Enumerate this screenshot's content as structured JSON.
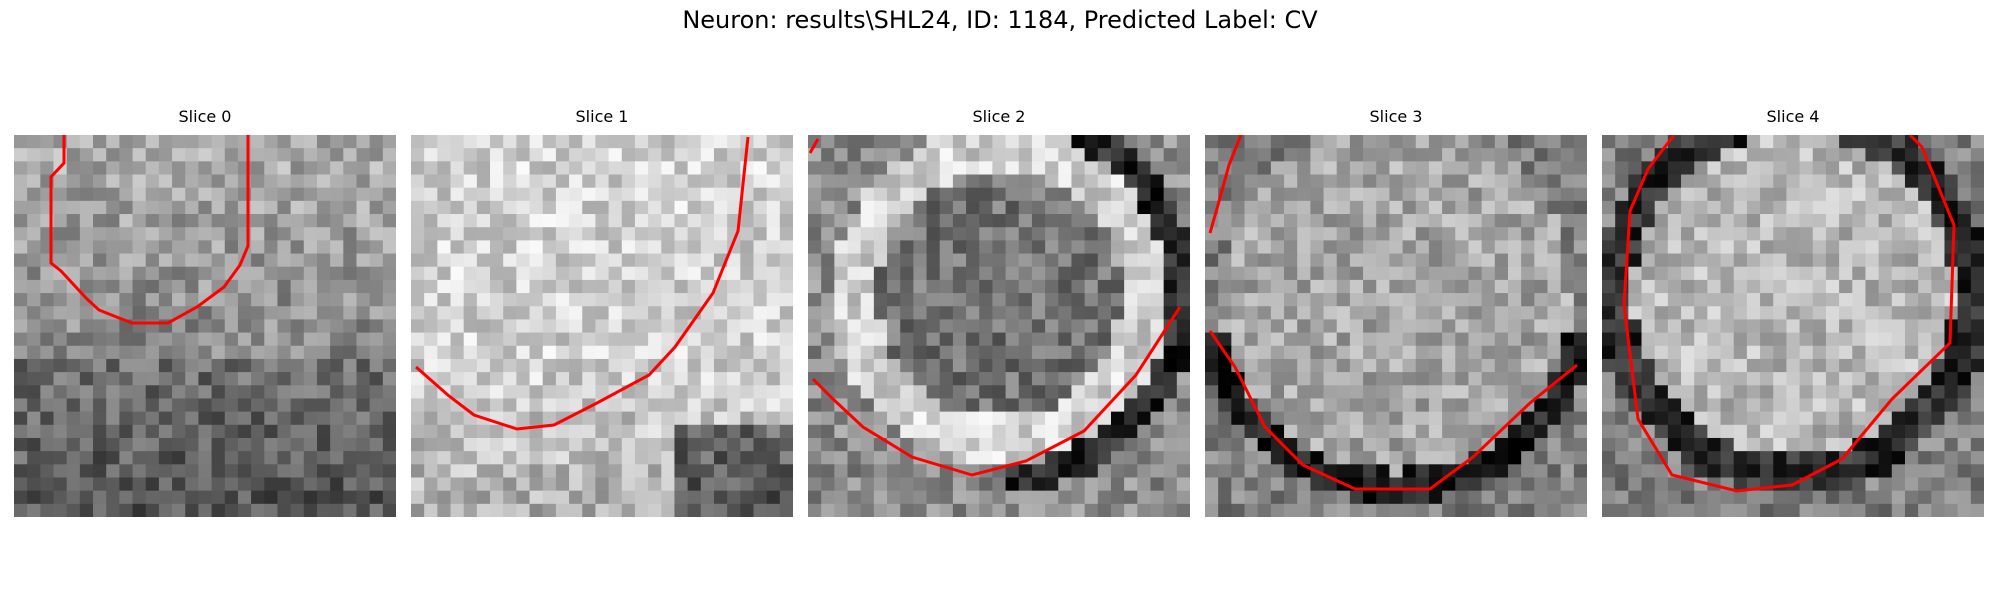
{
  "figure": {
    "title": "Neuron: results\\SHL24, ID: 1184, Predicted Label: CV"
  },
  "slices": [
    {
      "title": "Slice 0"
    },
    {
      "title": "Slice 1"
    },
    {
      "title": "Slice 2"
    },
    {
      "title": "Slice 3"
    },
    {
      "title": "Slice 4"
    }
  ],
  "contour_color": "#ff0000"
}
